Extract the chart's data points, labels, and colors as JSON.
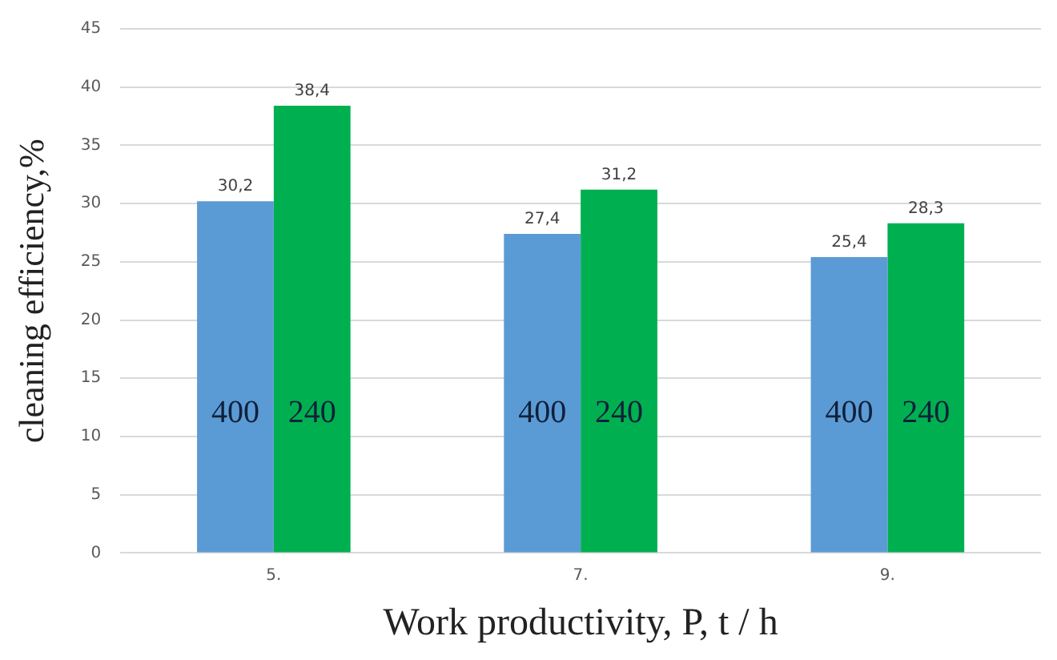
{
  "chart_data": {
    "type": "bar",
    "xlabel": "Work productivity, P, t / h",
    "ylabel": "cleaning efficiency,%",
    "categories": [
      "5.",
      "7.",
      "9."
    ],
    "series": [
      {
        "name": "400",
        "color": "#5b9bd5",
        "values": [
          30.2,
          27.4,
          25.4
        ],
        "value_labels": [
          "30,2",
          "27,4",
          "25,4"
        ]
      },
      {
        "name": "240",
        "color": "#00b050",
        "values": [
          38.4,
          31.2,
          28.3
        ],
        "value_labels": [
          "38,4",
          "31,2",
          "28,3"
        ]
      }
    ],
    "ylim": [
      0,
      45
    ],
    "yticks": [
      0,
      5,
      10,
      15,
      20,
      25,
      30,
      35,
      40,
      45
    ],
    "grid": "y",
    "legend": false
  }
}
